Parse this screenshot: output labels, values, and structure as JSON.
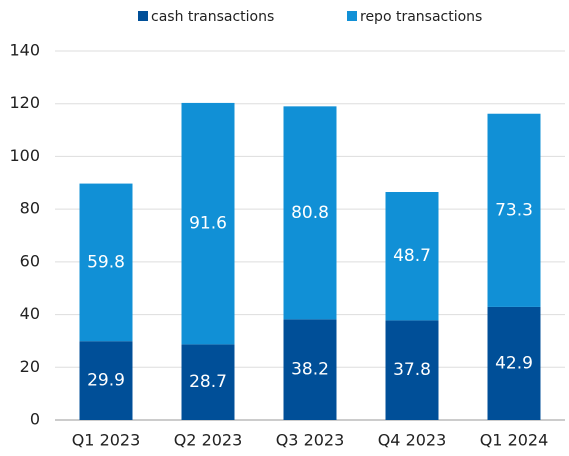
{
  "chart_data": {
    "type": "stacked_bar",
    "categories": [
      "Q1 2023",
      "Q2 2023",
      "Q3 2023",
      "Q4 2023",
      "Q1 2024"
    ],
    "series": [
      {
        "name": "cash transactions",
        "color": "#004f98",
        "values": [
          29.9,
          28.7,
          38.2,
          37.8,
          42.9
        ]
      },
      {
        "name": "repo transactions",
        "color": "#1190d6",
        "values": [
          59.8,
          91.6,
          80.8,
          48.7,
          73.3
        ]
      }
    ],
    "ylim": [
      0,
      140
    ],
    "yticks": [
      0,
      20,
      40,
      60,
      80,
      100,
      120,
      140
    ],
    "grid": true,
    "legend": "top"
  }
}
